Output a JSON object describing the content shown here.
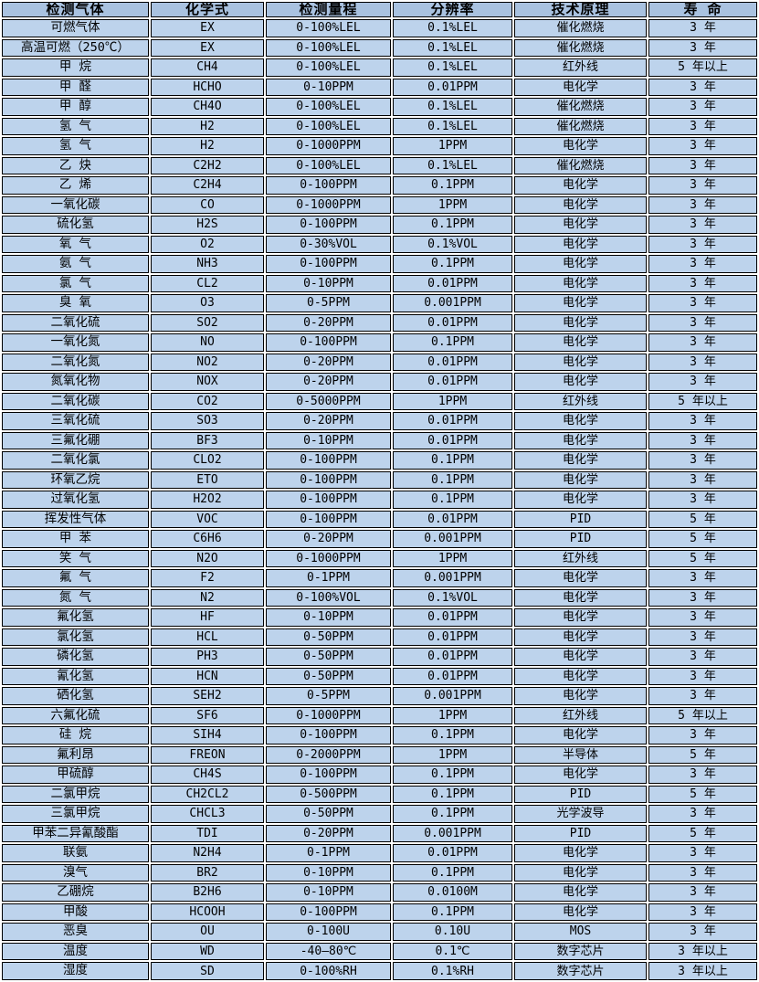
{
  "table": {
    "columns": [
      "检测气体",
      "化学式",
      "检测量程",
      "分辨率",
      "技术原理",
      "寿 命"
    ],
    "rows": [
      [
        "可燃气体",
        "EX",
        "0-100%LEL",
        "0.1%LEL",
        "催化燃烧",
        "3 年"
      ],
      [
        "高温可燃（250℃）",
        "EX",
        "0-100%LEL",
        "0.1%LEL",
        "催化燃烧",
        "3 年"
      ],
      [
        "甲 烷",
        "CH4",
        "0-100%LEL",
        "0.1%LEL",
        "红外线",
        "5 年以上"
      ],
      [
        "甲 醛",
        "HCHO",
        "0-10PPM",
        "0.01PPM",
        "电化学",
        "3 年"
      ],
      [
        "甲 醇",
        "CH4O",
        "0-100%LEL",
        "0.1%LEL",
        "催化燃烧",
        "3 年"
      ],
      [
        "氢 气",
        "H2",
        "0-100%LEL",
        "0.1%LEL",
        "催化燃烧",
        "3 年"
      ],
      [
        "氢 气",
        "H2",
        "0-1000PPM",
        "1PPM",
        "电化学",
        "3 年"
      ],
      [
        "乙 炔",
        "C2H2",
        "0-100%LEL",
        "0.1%LEL",
        "催化燃烧",
        "3 年"
      ],
      [
        "乙 烯",
        "C2H4",
        "0-100PPM",
        "0.1PPM",
        "电化学",
        "3 年"
      ],
      [
        "一氧化碳",
        "CO",
        "0-1000PPM",
        "1PPM",
        "电化学",
        "3 年"
      ],
      [
        "硫化氢",
        "H2S",
        "0-100PPM",
        "0.1PPM",
        "电化学",
        "3 年"
      ],
      [
        "氧 气",
        "O2",
        "0-30%VOL",
        "0.1%VOL",
        "电化学",
        "3 年"
      ],
      [
        "氨 气",
        "NH3",
        "0-100PPM",
        "0.1PPM",
        "电化学",
        "3 年"
      ],
      [
        "氯 气",
        "CL2",
        "0-10PPM",
        "0.01PPM",
        "电化学",
        "3 年"
      ],
      [
        "臭 氧",
        "O3",
        "0-5PPM",
        "0.001PPM",
        "电化学",
        "3 年"
      ],
      [
        "二氧化硫",
        "SO2",
        "0-20PPM",
        "0.01PPM",
        "电化学",
        "3 年"
      ],
      [
        "一氧化氮",
        "NO",
        "0-100PPM",
        "0.1PPM",
        "电化学",
        "3 年"
      ],
      [
        "二氧化氮",
        "NO2",
        "0-20PPM",
        "0.01PPM",
        "电化学",
        "3 年"
      ],
      [
        "氮氧化物",
        "NOX",
        "0-20PPM",
        "0.01PPM",
        "电化学",
        "3 年"
      ],
      [
        "二氧化碳",
        "CO2",
        "0-5000PPM",
        "1PPM",
        "红外线",
        "5 年以上"
      ],
      [
        "三氧化硫",
        "SO3",
        "0-20PPM",
        "0.01PPM",
        "电化学",
        "3 年"
      ],
      [
        "三氟化硼",
        "BF3",
        "0-10PPM",
        "0.01PPM",
        "电化学",
        "3 年"
      ],
      [
        "二氧化氯",
        "CLO2",
        "0-100PPM",
        "0.1PPM",
        "电化学",
        "3 年"
      ],
      [
        "环氧乙烷",
        "ETO",
        "0-100PPM",
        "0.1PPM",
        "电化学",
        "3 年"
      ],
      [
        "过氧化氢",
        "H2O2",
        "0-100PPM",
        "0.1PPM",
        "电化学",
        "3 年"
      ],
      [
        "挥发性气体",
        "VOC",
        "0-100PPM",
        "0.01PPM",
        "PID",
        "5 年"
      ],
      [
        "甲 苯",
        "C6H6",
        "0-20PPM",
        "0.001PPM",
        "PID",
        "5 年"
      ],
      [
        "笑 气",
        "N2O",
        "0-1000PPM",
        "1PPM",
        "红外线",
        "5 年"
      ],
      [
        "氟 气",
        "F2",
        "0-1PPM",
        "0.001PPM",
        "电化学",
        "3 年"
      ],
      [
        "氮 气",
        "N2",
        "0-100%VOL",
        "0.1%VOL",
        "电化学",
        "3 年"
      ],
      [
        "氟化氢",
        "HF",
        "0-10PPM",
        "0.01PPM",
        "电化学",
        "3 年"
      ],
      [
        "氯化氢",
        "HCL",
        "0-50PPM",
        "0.01PPM",
        "电化学",
        "3 年"
      ],
      [
        "磷化氢",
        "PH3",
        "0-50PPM",
        "0.01PPM",
        "电化学",
        "3 年"
      ],
      [
        "氰化氢",
        "HCN",
        "0-50PPM",
        "0.01PPM",
        "电化学",
        "3 年"
      ],
      [
        "硒化氢",
        "SEH2",
        "0-5PPM",
        "0.001PPM",
        "电化学",
        "3 年"
      ],
      [
        "六氟化硫",
        "SF6",
        "0-1000PPM",
        "1PPM",
        "红外线",
        "5 年以上"
      ],
      [
        "硅 烷",
        "SIH4",
        "0-100PPM",
        "0.1PPM",
        "电化学",
        "3 年"
      ],
      [
        "氟利昂",
        "FREON",
        "0-2000PPM",
        "1PPM",
        "半导体",
        "5 年"
      ],
      [
        "甲硫醇",
        "CH4S",
        "0-100PPM",
        "0.1PPM",
        "电化学",
        "3 年"
      ],
      [
        "二氯甲烷",
        "CH2CL2",
        "0-500PPM",
        "0.1PPM",
        "PID",
        "5 年"
      ],
      [
        "三氯甲烷",
        "CHCL3",
        "0-50PPM",
        "0.1PPM",
        "光学波导",
        "3 年"
      ],
      [
        "甲苯二异氰酸酯",
        "TDI",
        "0-20PPM",
        "0.001PPM",
        "PID",
        "5 年"
      ],
      [
        "联氨",
        "N2H4",
        "0-1PPM",
        "0.01PPM",
        "电化学",
        "3 年"
      ],
      [
        "溴气",
        "BR2",
        "0-10PPM",
        "0.1PPM",
        "电化学",
        "3 年"
      ],
      [
        "乙硼烷",
        "B2H6",
        "0-10PPM",
        "0.0100M",
        "电化学",
        "3 年"
      ],
      [
        "甲酸",
        "HCOOH",
        "0-100PPM",
        "0.1PPM",
        "电化学",
        "3 年"
      ],
      [
        "恶臭",
        "OU",
        "0-100U",
        "0.10U",
        "MOS",
        "3 年"
      ],
      [
        "温度",
        "WD",
        "-40—80℃",
        "0.1℃",
        "数字芯片",
        "3 年以上"
      ],
      [
        "湿度",
        "SD",
        "0-100%RH",
        "0.1%RH",
        "数字芯片",
        "3 年以上"
      ]
    ]
  },
  "colors": {
    "header_bg": "#a9c2e0",
    "row_bg": "#bdd3ec",
    "border": "#000000",
    "gap": "#ffffff",
    "text": "#000000"
  }
}
